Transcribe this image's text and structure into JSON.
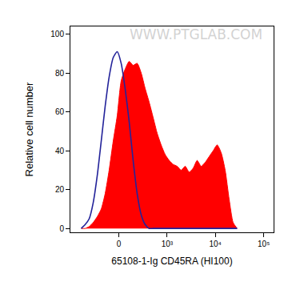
{
  "chart_data": {
    "type": "line",
    "x_label": "65108-1-Ig CD45RA (HI100)",
    "y_label": "Relative cell number",
    "annotations": [
      "WWW.PTGLAB.COM"
    ],
    "x": [
      -587,
      -479,
      -388,
      -313,
      -246,
      -189,
      -140,
      -96,
      -54,
      -15,
      23,
      62,
      104,
      149,
      200,
      259,
      326,
      405,
      500,
      612,
      745,
      909,
      1105,
      1337,
      1622,
      1963,
      2376,
      2875,
      3478,
      4206,
      5090,
      6161,
      7454,
      9009,
      10908,
      13191,
      15958,
      19291,
      23331,
      28219
    ],
    "series": [
      {
        "type": "area",
        "color": "#ff0000",
        "values": [
          0,
          0,
          1,
          3,
          6,
          10,
          18,
          30,
          45,
          58,
          76,
          82,
          86,
          84,
          85,
          80,
          72,
          65,
          57,
          49,
          43,
          38,
          35,
          33,
          32,
          30,
          32,
          29,
          31,
          35,
          32,
          34,
          37,
          40,
          43,
          39,
          30,
          15,
          3,
          0
        ]
      },
      {
        "type": "line",
        "color": "#23239a",
        "values": [
          0,
          2,
          5,
          13,
          27,
          45,
          63,
          78,
          88,
          91,
          85,
          72,
          55,
          35,
          18,
          7,
          2,
          0,
          0,
          0,
          0,
          0,
          0,
          0,
          0,
          0,
          0,
          0,
          0,
          0,
          0,
          0,
          0,
          0,
          0,
          0,
          0,
          0,
          0,
          0
        ]
      }
    ],
    "xlim": [
      -1000,
      160000
    ],
    "xticks": [
      0,
      {
        "value": 1000,
        "label": "10³"
      },
      {
        "value": 10000,
        "label": "10⁴"
      },
      {
        "value": 100000,
        "label": "10⁵"
      }
    ],
    "ylim": [
      -2,
      104
    ],
    "yticks": [
      0,
      20,
      40,
      60,
      80,
      100
    ],
    "grid": false
  }
}
